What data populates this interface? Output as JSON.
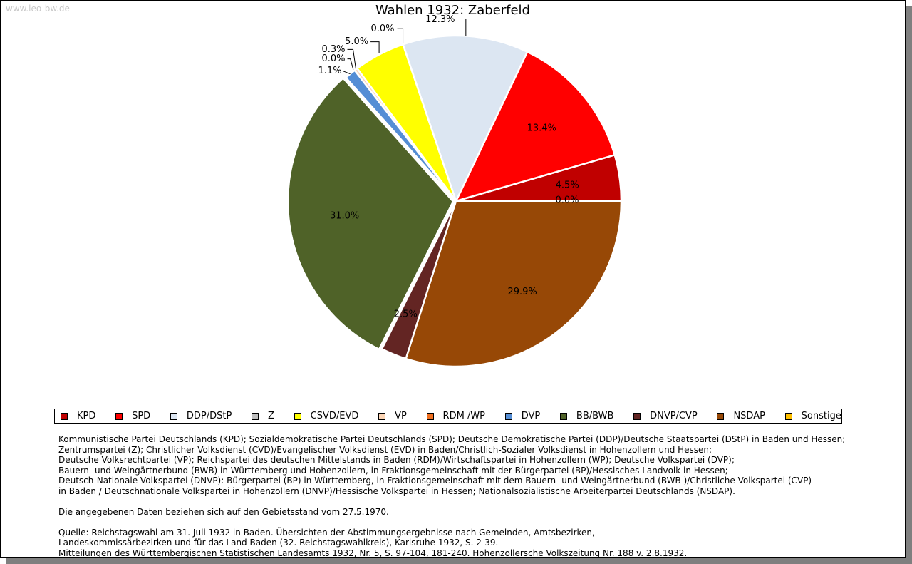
{
  "watermark": "www.leo-bw.de",
  "chart_data": {
    "type": "pie",
    "title": "Wahlen 1932: Zaberfeld",
    "slices": [
      {
        "party": "KPD",
        "value": 4.5,
        "label": "4.5%",
        "color": "#c00000"
      },
      {
        "party": "SPD",
        "value": 13.4,
        "label": "13.4%",
        "color": "#ff0000"
      },
      {
        "party": "DDP/DStP",
        "value": 12.3,
        "label": "12.3%",
        "color": "#dce6f2"
      },
      {
        "party": "Z",
        "value": 0.0,
        "label": "0.0%",
        "color": "#bfbfbf"
      },
      {
        "party": "CSVD/EVD",
        "value": 5.0,
        "label": "5.0%",
        "color": "#ffff00"
      },
      {
        "party": "VP",
        "value": 0.3,
        "label": "0.3%",
        "color": "#fcd5b5"
      },
      {
        "party": "RDM /WP",
        "value": 0.0,
        "label": "0.0%",
        "color": "#f07020"
      },
      {
        "party": "DVP",
        "value": 1.1,
        "label": "1.1%",
        "color": "#558ed5"
      },
      {
        "party": "BB/BWB",
        "value": 31.0,
        "label": "31.0%",
        "color": "#4f6228"
      },
      {
        "party": "DNVP/CVP",
        "value": 2.5,
        "label": "2.5%",
        "color": "#632523"
      },
      {
        "party": "NSDAP",
        "value": 29.9,
        "label": "29.9%",
        "color": "#974806"
      },
      {
        "party": "Sonstige",
        "value": 0.0,
        "label": "0.0%",
        "color": "#ffc000"
      }
    ]
  },
  "legend": [
    {
      "label": "KPD",
      "color": "#c00000"
    },
    {
      "label": "SPD",
      "color": "#ff0000"
    },
    {
      "label": "DDP/DStP",
      "color": "#dce6f2"
    },
    {
      "label": "Z",
      "color": "#bfbfbf"
    },
    {
      "label": "CSVD/EVD",
      "color": "#ffff00"
    },
    {
      "label": "VP",
      "color": "#fcd5b5"
    },
    {
      "label": "RDM /WP",
      "color": "#f07020"
    },
    {
      "label": "DVP",
      "color": "#558ed5"
    },
    {
      "label": "BB/BWB",
      "color": "#4f6228"
    },
    {
      "label": "DNVP/CVP",
      "color": "#632523"
    },
    {
      "label": "NSDAP",
      "color": "#974806"
    },
    {
      "label": "Sonstige",
      "color": "#ffc000"
    }
  ],
  "footnote": {
    "parties": [
      "Kommunistische Partei Deutschlands (KPD); Sozialdemokratische Partei Deutschlands (SPD); Deutsche Demokratische Partei (DDP)/Deutsche Staatspartei (DStP) in Baden und Hessen;",
      "Zentrumspartei (Z); Christlicher Volksdienst (CVD)/Evangelischer Volksdienst (EVD) in Baden/Christlich-Sozialer Volksdienst in Hohenzollern und Hessen;",
      "Deutsche Volksrechtpartei (VP); Reichspartei des deutschen Mittelstands in Baden (RDM)/Wirtschaftspartei in Hohenzollern (WP); Deutsche Volkspartei (DVP);",
      "Bauern- und Weingärtnerbund (BWB) in Württemberg und Hohenzollern, in Fraktionsgemeinschaft mit der Bürgerpartei (BP)/Hessisches Landvolk in Hessen;",
      "Deutsch-Nationale Volkspartei (DNVP): Bürgerpartei (BP) in Württemberg, in Fraktionsgemeinschaft mit dem Bauern- und Weingärtnerbund (BWB )/Christliche Volkspartei (CVP)",
      "in Baden / Deutschnationale Volkspartei in Hohenzollern (DNVP)/Hessische Volkspartei in Hessen; Nationalsozialistische Arbeiterpartei Deutschlands (NSDAP)."
    ],
    "territory": "Die angegebenen Daten beziehen sich auf den Gebietsstand vom 27.5.1970.",
    "source": [
      "Quelle: Reichstagswahl am 31. Juli 1932 in Baden. Übersichten der Abstimmungsergebnisse nach Gemeinden, Amtsbezirken,",
      "Landeskommissärbezirken und für das Land Baden (32. Reichstagswahlkreis), Karlsruhe 1932, S. 2-39.",
      "Mitteilungen des Württembergischen Statistischen Landesamts 1932, Nr. 5, S. 97-104, 181-240. Hohenzollersche Volkszeitung Nr. 188 v. 2.8.1932."
    ]
  }
}
